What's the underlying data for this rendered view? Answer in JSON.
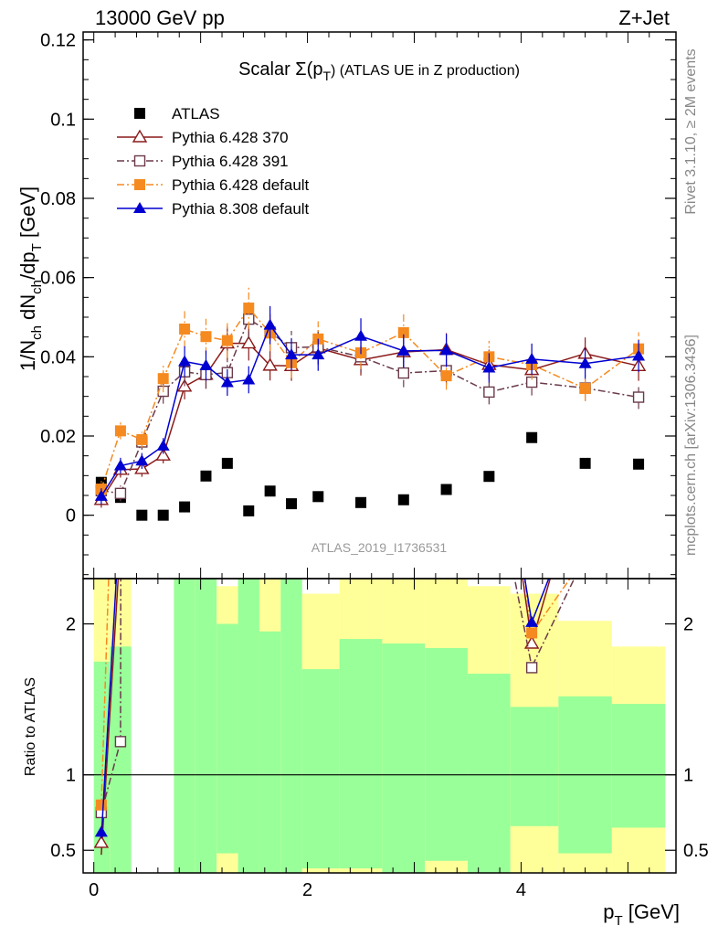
{
  "header": {
    "left_label": "13000 GeV pp",
    "right_label": "Z+Jet"
  },
  "side_labels": {
    "rivet": "Rivet 3.1.10, ≥ 2M events",
    "mcplots": "mcplots.cern.ch [arXiv:1306.3436]"
  },
  "watermark": "ATLAS_2019_I1736531",
  "chart_data": [
    {
      "type": "scatter",
      "panel": "main",
      "title": "Scalar Σ(pT) (ATLAS UE in Z production)",
      "title_parts": {
        "main": "Scalar Σ(p",
        "sub": "T",
        "tail": ") (ATLAS UE in Z production)"
      },
      "ylabel": "1/N_ch dN_ch/dp_T [GeV]",
      "ylabel_parts": [
        "1/N",
        "ch",
        " dN",
        "ch",
        "/dp",
        "T",
        " [GeV]"
      ],
      "xlabel": "p_T [GeV]",
      "xlabel_parts": [
        "p",
        "T",
        " [GeV]"
      ],
      "xlim": [
        -0.1,
        5.45
      ],
      "ylim": [
        -0.016,
        0.122
      ],
      "y_ticks": [
        0,
        0.02,
        0.04,
        0.06,
        0.08,
        0.1,
        0.12
      ],
      "y_tick_labels": [
        "0",
        "0.02",
        "0.04",
        "0.06",
        "0.08",
        "0.1",
        "0.12"
      ],
      "x_ticks": [
        0,
        2,
        4
      ],
      "x_tick_labels": [
        "0",
        "2",
        "4"
      ],
      "grid": false,
      "legend_position": "top-left",
      "x": [
        0.07,
        0.25,
        0.45,
        0.65,
        0.85,
        1.05,
        1.25,
        1.45,
        1.65,
        1.85,
        2.1,
        2.5,
        2.9,
        3.3,
        3.7,
        4.1,
        4.6,
        5.1
      ],
      "series": [
        {
          "name": "ATLAS",
          "color": "#000000",
          "marker": "square-filled",
          "line": "none",
          "values": [
            0.0083,
            0.0045,
            0.0,
            0.0,
            0.0021,
            0.0099,
            0.0131,
            0.0011,
            0.0061,
            0.0029,
            0.0047,
            0.0032,
            0.0039,
            0.0065,
            0.0098,
            0.0196,
            0.0131,
            0.0129
          ]
        },
        {
          "name": "Pythia 6.428 370",
          "color": "#8b1a1a",
          "marker": "triangle-open",
          "line": "solid",
          "values": [
            0.0039,
            0.0115,
            0.0117,
            0.0151,
            0.0325,
            0.0355,
            0.0434,
            0.0434,
            0.0378,
            0.0377,
            0.0422,
            0.0392,
            0.0412,
            0.0418,
            0.038,
            0.0367,
            0.0408,
            0.0377
          ]
        },
        {
          "name": "Pythia 6.428 391",
          "color": "#6a3a4a",
          "marker": "square-open",
          "line": "dashdot",
          "values": [
            0.0062,
            0.0055,
            0.0185,
            0.0313,
            0.0362,
            0.0355,
            0.036,
            0.0495,
            0.0462,
            0.0423,
            0.0425,
            0.04,
            0.0359,
            0.0365,
            0.0311,
            0.0336,
            0.0321,
            0.0298
          ]
        },
        {
          "name": "Pythia 6.428 default",
          "color": "#f58a20",
          "marker": "square-filled",
          "line": "dashdot",
          "values": [
            0.0066,
            0.0213,
            0.0191,
            0.0345,
            0.047,
            0.0451,
            0.0441,
            0.0523,
            0.046,
            0.0385,
            0.0445,
            0.041,
            0.0461,
            0.0352,
            0.04,
            0.038,
            0.032,
            0.042
          ]
        },
        {
          "name": "Pythia 8.308 default",
          "color": "#0000d0",
          "marker": "triangle-filled",
          "line": "solid",
          "values": [
            0.0048,
            0.0125,
            0.0137,
            0.0175,
            0.0388,
            0.0378,
            0.0335,
            0.0342,
            0.048,
            0.0405,
            0.0405,
            0.0452,
            0.0415,
            0.0416,
            0.0372,
            0.0394,
            0.0383,
            0.0402
          ]
        }
      ]
    },
    {
      "type": "line",
      "panel": "ratio",
      "ylabel": "Ratio to ATLAS",
      "ylim": [
        0.35,
        2.3
      ],
      "y_ticks": [
        0.5,
        1,
        2
      ],
      "y_tick_labels": [
        "0.5",
        "1",
        "2"
      ],
      "reference_line": 1,
      "bands": [
        {
          "x0": 0.0,
          "x1": 0.15,
          "yellow": [
            0.35,
            2.3
          ],
          "green": [
            0.35,
            1.75
          ]
        },
        {
          "x0": 0.15,
          "x1": 0.35,
          "yellow": [
            0.35,
            2.3
          ],
          "green": [
            0.35,
            1.85
          ]
        },
        {
          "x0": 0.75,
          "x1": 0.95,
          "yellow": [
            0.35,
            2.3
          ],
          "green": [
            0.35,
            2.3
          ]
        },
        {
          "x0": 0.95,
          "x1": 1.15,
          "yellow": [
            0.35,
            2.3
          ],
          "green": [
            0.35,
            2.3
          ]
        },
        {
          "x0": 1.15,
          "x1": 1.35,
          "yellow": [
            0.35,
            2.25
          ],
          "green": [
            0.48,
            2.0
          ]
        },
        {
          "x0": 1.35,
          "x1": 1.55,
          "yellow": [
            0.35,
            2.3
          ],
          "green": [
            0.35,
            2.3
          ]
        },
        {
          "x0": 1.55,
          "x1": 1.75,
          "yellow": [
            0.35,
            2.3
          ],
          "green": [
            0.35,
            1.95
          ]
        },
        {
          "x0": 1.75,
          "x1": 1.95,
          "yellow": [
            0.35,
            2.3
          ],
          "green": [
            0.35,
            2.3
          ]
        },
        {
          "x0": 1.95,
          "x1": 2.3,
          "yellow": [
            0.35,
            2.2
          ],
          "green": [
            0.38,
            1.7
          ]
        },
        {
          "x0": 2.3,
          "x1": 2.7,
          "yellow": [
            0.35,
            2.3
          ],
          "green": [
            0.38,
            1.9
          ]
        },
        {
          "x0": 2.7,
          "x1": 3.1,
          "yellow": [
            0.35,
            2.3
          ],
          "green": [
            0.35,
            1.87
          ]
        },
        {
          "x0": 3.1,
          "x1": 3.5,
          "yellow": [
            0.35,
            2.3
          ],
          "green": [
            0.43,
            1.84
          ]
        },
        {
          "x0": 3.5,
          "x1": 3.9,
          "yellow": [
            0.35,
            2.25
          ],
          "green": [
            0.35,
            1.67
          ]
        },
        {
          "x0": 3.9,
          "x1": 4.35,
          "yellow": [
            0.35,
            2.2
          ],
          "green": [
            0.66,
            1.45
          ]
        },
        {
          "x0": 4.35,
          "x1": 4.85,
          "yellow": [
            0.35,
            2.02
          ],
          "green": [
            0.48,
            1.52
          ]
        },
        {
          "x0": 4.85,
          "x1": 5.35,
          "yellow": [
            0.35,
            1.85
          ],
          "green": [
            0.65,
            1.47
          ]
        }
      ],
      "visible_ratio_points": [
        {
          "series": "Pythia 6.428 370",
          "x": [
            0.07,
            4.1
          ],
          "values": [
            0.55,
            1.87
          ]
        },
        {
          "series": "Pythia 6.428 391",
          "x": [
            0.07,
            0.25,
            4.1,
            4.6,
            5.1
          ],
          "values": [
            0.75,
            1.22,
            1.71,
            2.45,
            2.31
          ]
        },
        {
          "series": "Pythia 6.428 default",
          "x": [
            0.07,
            4.1,
            4.6
          ],
          "values": [
            0.8,
            1.94,
            2.44
          ]
        },
        {
          "series": "Pythia 8.308 default",
          "x": [
            0.07,
            4.1
          ],
          "values": [
            0.62,
            2.01
          ]
        }
      ]
    }
  ]
}
